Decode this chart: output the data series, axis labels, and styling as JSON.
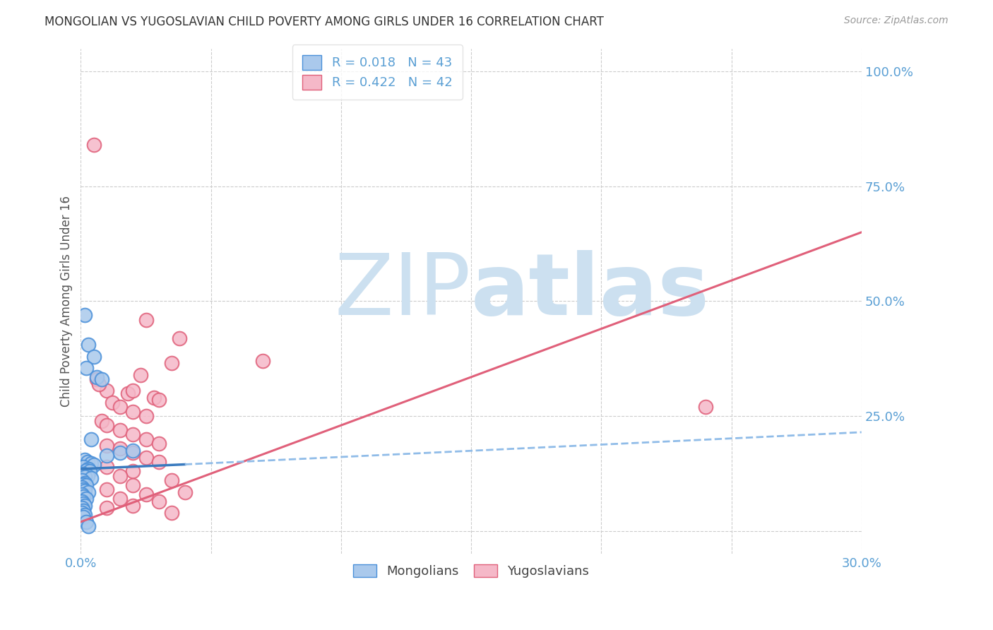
{
  "title": "MONGOLIAN VS YUGOSLAVIAN CHILD POVERTY AMONG GIRLS UNDER 16 CORRELATION CHART",
  "source": "Source: ZipAtlas.com",
  "ylabel": "Child Poverty Among Girls Under 16",
  "xlim": [
    0.0,
    30.0
  ],
  "ylim": [
    -5.0,
    105.0
  ],
  "yticks_right": [
    0,
    25.0,
    50.0,
    75.0,
    100.0
  ],
  "ytick_labels_right": [
    "",
    "25.0%",
    "50.0%",
    "75.0%",
    "100.0%"
  ],
  "mongolian_color": "#aac9ec",
  "mongolian_edge_color": "#4a90d9",
  "yugoslavian_color": "#f5b8c8",
  "yugoslavian_edge_color": "#e0607a",
  "mongolian_R": 0.018,
  "mongolian_N": 43,
  "yugoslavian_R": 0.422,
  "yugoslavian_N": 42,
  "mongolian_line_color": "#3a7bbf",
  "mongolian_dashed_color": "#90bce8",
  "yugoslavian_line_color": "#e0607a",
  "watermark_zip": "ZIP",
  "watermark_atlas": "atlas",
  "watermark_color": "#cce0f0",
  "background_color": "#ffffff",
  "grid_color": "#cccccc",
  "title_color": "#333333",
  "axis_label_color": "#5a9fd4",
  "mongolians_scatter": [
    [
      0.15,
      47.0
    ],
    [
      0.3,
      40.5
    ],
    [
      0.5,
      38.0
    ],
    [
      0.2,
      35.5
    ],
    [
      0.6,
      33.5
    ],
    [
      0.8,
      33.0
    ],
    [
      0.4,
      20.0
    ],
    [
      1.5,
      17.0
    ],
    [
      2.0,
      17.5
    ],
    [
      1.0,
      16.5
    ],
    [
      0.15,
      15.5
    ],
    [
      0.25,
      15.0
    ],
    [
      0.4,
      14.8
    ],
    [
      0.5,
      14.5
    ],
    [
      0.1,
      14.0
    ],
    [
      0.3,
      13.5
    ],
    [
      0.2,
      13.2
    ],
    [
      0.35,
      13.0
    ],
    [
      0.1,
      12.5
    ],
    [
      0.25,
      12.0
    ],
    [
      0.15,
      11.8
    ],
    [
      0.4,
      11.5
    ],
    [
      0.05,
      11.0
    ],
    [
      0.15,
      10.5
    ],
    [
      0.1,
      10.2
    ],
    [
      0.2,
      10.0
    ],
    [
      0.05,
      9.5
    ],
    [
      0.1,
      9.0
    ],
    [
      0.15,
      8.8
    ],
    [
      0.3,
      8.5
    ],
    [
      0.05,
      8.0
    ],
    [
      0.1,
      7.5
    ],
    [
      0.2,
      7.0
    ],
    [
      0.05,
      6.5
    ],
    [
      0.1,
      6.0
    ],
    [
      0.15,
      5.5
    ],
    [
      0.05,
      5.0
    ],
    [
      0.1,
      4.5
    ],
    [
      0.05,
      4.0
    ],
    [
      0.15,
      3.5
    ],
    [
      0.1,
      3.0
    ],
    [
      0.2,
      2.0
    ],
    [
      0.3,
      1.0
    ]
  ],
  "yugoslavian_scatter": [
    [
      0.5,
      84.0
    ],
    [
      2.5,
      46.0
    ],
    [
      3.8,
      42.0
    ],
    [
      2.3,
      34.0
    ],
    [
      1.8,
      30.0
    ],
    [
      2.0,
      30.5
    ],
    [
      3.5,
      36.5
    ],
    [
      24.0,
      27.0
    ],
    [
      7.0,
      37.0
    ],
    [
      1.0,
      30.5
    ],
    [
      0.6,
      33.0
    ],
    [
      0.7,
      32.0
    ],
    [
      2.8,
      29.0
    ],
    [
      3.0,
      28.5
    ],
    [
      1.2,
      28.0
    ],
    [
      1.5,
      27.0
    ],
    [
      2.0,
      26.0
    ],
    [
      2.5,
      25.0
    ],
    [
      0.8,
      24.0
    ],
    [
      1.0,
      23.0
    ],
    [
      1.5,
      22.0
    ],
    [
      2.0,
      21.0
    ],
    [
      2.5,
      20.0
    ],
    [
      3.0,
      19.0
    ],
    [
      1.0,
      18.5
    ],
    [
      1.5,
      18.0
    ],
    [
      2.0,
      17.0
    ],
    [
      2.5,
      16.0
    ],
    [
      3.0,
      15.0
    ],
    [
      1.0,
      14.0
    ],
    [
      2.0,
      13.0
    ],
    [
      1.5,
      12.0
    ],
    [
      3.5,
      11.0
    ],
    [
      2.0,
      10.0
    ],
    [
      1.0,
      9.0
    ],
    [
      4.0,
      8.5
    ],
    [
      2.5,
      8.0
    ],
    [
      1.5,
      7.0
    ],
    [
      3.0,
      6.5
    ],
    [
      2.0,
      5.5
    ],
    [
      1.0,
      5.0
    ],
    [
      3.5,
      4.0
    ]
  ],
  "mongolian_solid_line": [
    0.0,
    13.5,
    4.0,
    14.5
  ],
  "mongolian_dashed_line": [
    4.0,
    14.5,
    30.0,
    21.5
  ],
  "yugoslavian_line": [
    0.0,
    2.0,
    30.0,
    65.0
  ]
}
